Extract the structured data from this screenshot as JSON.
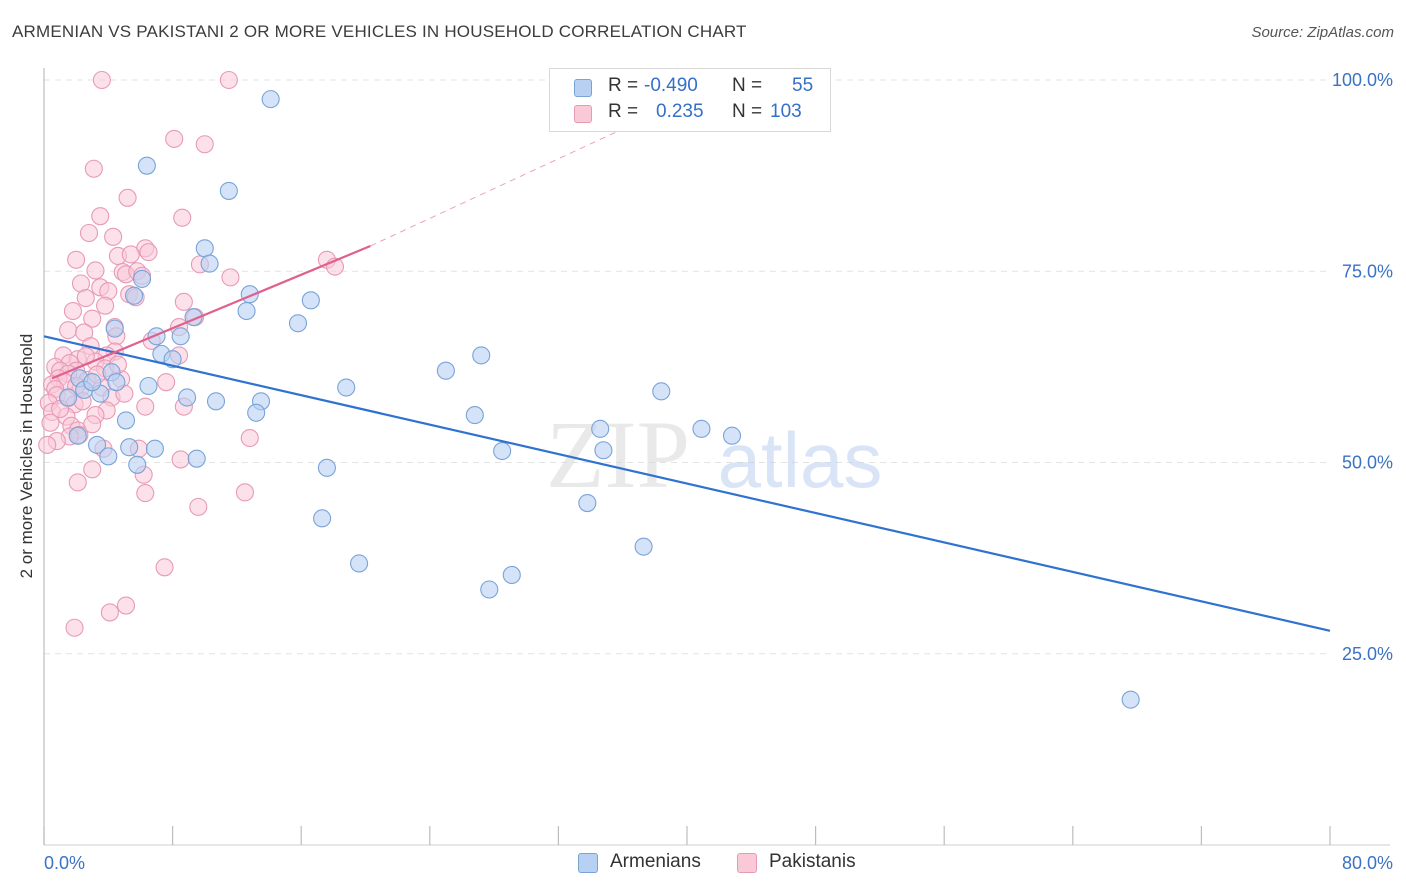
{
  "title": "ARMENIAN VS PAKISTANI 2 OR MORE VEHICLES IN HOUSEHOLD CORRELATION CHART",
  "source": "Source: ZipAtlas.com",
  "watermark": {
    "zip": "ZIP",
    "atlas": "atlas"
  },
  "legend": {
    "rows": [
      {
        "r_label": "R =",
        "r_value": "-0.490",
        "n_label": "N =",
        "n_value": "55"
      },
      {
        "r_label": "R =",
        "r_value": "0.235",
        "n_label": "N =",
        "n_value": "103"
      }
    ]
  },
  "bottom_legend": {
    "series1": "Armenians",
    "series2": "Pakistanis"
  },
  "colors": {
    "armenians_fill": "#b8d0f2",
    "armenians_stroke": "#7aa3d8",
    "armenians_line": "#2f72d0",
    "pakistanis_fill": "#f9c9d8",
    "pakistanis_stroke": "#e89ab4",
    "pakistanis_line": "#e0608e",
    "tick_label": "#3a72c4",
    "grid": "#e3e3e3"
  },
  "chart_data": {
    "type": "scatter",
    "title": "ARMENIAN VS PAKISTANI 2 OR MORE VEHICLES IN HOUSEHOLD CORRELATION CHART",
    "xlabel": "",
    "ylabel": "2 or more Vehicles in Household",
    "xlim": [
      0,
      80
    ],
    "ylim": [
      0,
      100
    ],
    "x_tick_labels": [
      "0.0%",
      "80.0%"
    ],
    "y_ticks": [
      25,
      50,
      75,
      100
    ],
    "y_tick_labels": [
      "25.0%",
      "50.0%",
      "75.0%",
      "100.0%"
    ],
    "grid": true,
    "legend_position": "top-center",
    "series": [
      {
        "name": "Armenians",
        "r": -0.49,
        "n": 55,
        "trend": {
          "x": [
            0,
            80
          ],
          "y": [
            66.5,
            28.0
          ]
        },
        "points": [
          [
            14.1,
            97.5
          ],
          [
            6.4,
            88.8
          ],
          [
            11.5,
            85.5
          ],
          [
            10.0,
            78.0
          ],
          [
            10.3,
            76.0
          ],
          [
            6.1,
            74.0
          ],
          [
            12.8,
            72.0
          ],
          [
            16.6,
            71.2
          ],
          [
            5.6,
            71.8
          ],
          [
            12.6,
            69.8
          ],
          [
            9.3,
            69.0
          ],
          [
            15.8,
            68.2
          ],
          [
            4.4,
            67.5
          ],
          [
            8.5,
            66.5
          ],
          [
            7.0,
            66.5
          ],
          [
            7.3,
            64.2
          ],
          [
            8.0,
            63.5
          ],
          [
            27.2,
            64.0
          ],
          [
            25.0,
            62.0
          ],
          [
            4.2,
            61.8
          ],
          [
            2.2,
            61.0
          ],
          [
            4.5,
            60.5
          ],
          [
            18.8,
            59.8
          ],
          [
            2.5,
            59.5
          ],
          [
            3.5,
            59.0
          ],
          [
            38.4,
            59.3
          ],
          [
            8.9,
            58.5
          ],
          [
            10.7,
            58.0
          ],
          [
            13.5,
            58.0
          ],
          [
            13.2,
            56.5
          ],
          [
            26.8,
            56.2
          ],
          [
            5.1,
            55.5
          ],
          [
            34.6,
            54.4
          ],
          [
            40.9,
            54.4
          ],
          [
            2.1,
            53.5
          ],
          [
            42.8,
            53.5
          ],
          [
            3.3,
            52.3
          ],
          [
            5.3,
            52.0
          ],
          [
            6.9,
            51.8
          ],
          [
            28.5,
            51.5
          ],
          [
            34.8,
            51.6
          ],
          [
            4.0,
            50.8
          ],
          [
            9.5,
            50.5
          ],
          [
            5.8,
            49.7
          ],
          [
            17.6,
            49.3
          ],
          [
            33.8,
            44.7
          ],
          [
            17.3,
            42.7
          ],
          [
            37.3,
            39.0
          ],
          [
            19.6,
            36.8
          ],
          [
            29.1,
            35.3
          ],
          [
            27.7,
            33.4
          ],
          [
            67.6,
            19.0
          ],
          [
            3.0,
            60.5
          ],
          [
            1.5,
            58.5
          ],
          [
            6.5,
            60.0
          ]
        ]
      },
      {
        "name": "Pakistanis",
        "r": 0.235,
        "n": 103,
        "trend": {
          "x": [
            0.5,
            20.3
          ],
          "y": [
            61.0,
            78.3
          ]
        },
        "trend_extension": {
          "x": [
            20.3,
            40.0
          ],
          "y": [
            78.3,
            97.5
          ]
        },
        "points": [
          [
            3.6,
            100.0
          ],
          [
            11.5,
            100.0
          ],
          [
            8.1,
            92.3
          ],
          [
            10.0,
            91.6
          ],
          [
            3.1,
            88.4
          ],
          [
            5.2,
            84.6
          ],
          [
            3.5,
            82.2
          ],
          [
            8.6,
            82.0
          ],
          [
            2.8,
            80.0
          ],
          [
            4.3,
            79.5
          ],
          [
            6.3,
            78.0
          ],
          [
            4.6,
            77.0
          ],
          [
            5.4,
            77.2
          ],
          [
            6.5,
            77.5
          ],
          [
            2.0,
            76.5
          ],
          [
            9.7,
            75.9
          ],
          [
            17.6,
            76.5
          ],
          [
            18.1,
            75.6
          ],
          [
            3.2,
            75.1
          ],
          [
            4.9,
            74.9
          ],
          [
            5.1,
            74.6
          ],
          [
            5.8,
            75.0
          ],
          [
            6.1,
            74.4
          ],
          [
            11.6,
            74.2
          ],
          [
            2.3,
            73.4
          ],
          [
            3.5,
            72.9
          ],
          [
            4.0,
            72.4
          ],
          [
            5.3,
            72.0
          ],
          [
            5.7,
            71.6
          ],
          [
            2.6,
            71.5
          ],
          [
            8.7,
            71.0
          ],
          [
            3.8,
            70.5
          ],
          [
            1.8,
            69.8
          ],
          [
            3.0,
            68.8
          ],
          [
            9.4,
            69.0
          ],
          [
            4.4,
            67.7
          ],
          [
            1.5,
            67.3
          ],
          [
            2.5,
            67.0
          ],
          [
            8.4,
            67.7
          ],
          [
            4.5,
            66.5
          ],
          [
            6.7,
            65.9
          ],
          [
            2.9,
            65.2
          ],
          [
            4.4,
            64.5
          ],
          [
            3.9,
            64.0
          ],
          [
            1.2,
            64.0
          ],
          [
            8.4,
            64.0
          ],
          [
            2.1,
            63.5
          ],
          [
            1.6,
            63.0
          ],
          [
            3.2,
            63.2
          ],
          [
            0.7,
            62.5
          ],
          [
            1.0,
            62.0
          ],
          [
            2.0,
            62.0
          ],
          [
            3.8,
            62.3
          ],
          [
            1.5,
            61.6
          ],
          [
            0.9,
            61.0
          ],
          [
            2.7,
            60.8
          ],
          [
            4.8,
            60.9
          ],
          [
            1.3,
            60.5
          ],
          [
            0.5,
            60.2
          ],
          [
            0.7,
            59.6
          ],
          [
            2.3,
            59.8
          ],
          [
            3.6,
            59.8
          ],
          [
            0.8,
            58.8
          ],
          [
            1.5,
            58.4
          ],
          [
            4.2,
            58.5
          ],
          [
            0.3,
            57.8
          ],
          [
            1.9,
            57.6
          ],
          [
            6.3,
            57.3
          ],
          [
            8.7,
            57.3
          ],
          [
            3.9,
            56.8
          ],
          [
            3.2,
            56.2
          ],
          [
            0.5,
            56.6
          ],
          [
            1.4,
            56.0
          ],
          [
            0.4,
            55.2
          ],
          [
            1.7,
            54.8
          ],
          [
            2.1,
            54.2
          ],
          [
            2.2,
            53.6
          ],
          [
            1.6,
            53.4
          ],
          [
            12.8,
            53.2
          ],
          [
            0.8,
            52.8
          ],
          [
            0.2,
            52.3
          ],
          [
            3.7,
            51.8
          ],
          [
            5.9,
            51.8
          ],
          [
            8.5,
            50.4
          ],
          [
            3.0,
            49.1
          ],
          [
            6.2,
            48.4
          ],
          [
            2.1,
            47.4
          ],
          [
            6.3,
            46.0
          ],
          [
            12.5,
            46.1
          ],
          [
            9.6,
            44.2
          ],
          [
            7.5,
            36.3
          ],
          [
            5.1,
            31.3
          ],
          [
            4.1,
            30.4
          ],
          [
            1.9,
            28.4
          ],
          [
            2.0,
            60.0
          ],
          [
            3.3,
            61.5
          ],
          [
            2.6,
            63.9
          ],
          [
            4.6,
            62.8
          ],
          [
            1.0,
            57.0
          ],
          [
            7.6,
            60.5
          ],
          [
            5.0,
            59.0
          ],
          [
            2.4,
            58.0
          ],
          [
            3.0,
            55.0
          ]
        ]
      }
    ]
  }
}
